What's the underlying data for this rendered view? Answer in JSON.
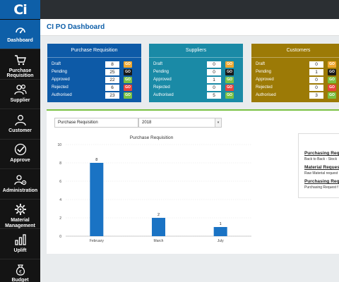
{
  "app": {
    "logo": "Ci",
    "title": "CI PO Dashboard"
  },
  "sidebar": {
    "items": [
      {
        "label": "Dashboard",
        "icon": "dashboard-icon",
        "active": true
      },
      {
        "label": "Purchase Requisition",
        "icon": "cart-icon",
        "active": false
      },
      {
        "label": "Supplier",
        "icon": "users-icon",
        "active": false
      },
      {
        "label": "Customer",
        "icon": "user-icon",
        "active": false
      },
      {
        "label": "Approve",
        "icon": "check-circle-icon",
        "active": false
      },
      {
        "label": "Administration",
        "icon": "gear-user-icon",
        "active": false
      },
      {
        "label": "Material Management",
        "icon": "gear-icon",
        "active": false
      },
      {
        "label": "Uplift",
        "icon": "bar-chart-icon",
        "active": false
      },
      {
        "label": "Budget",
        "icon": "money-bag-icon",
        "active": false
      }
    ]
  },
  "cards": [
    {
      "title": "Purchase Requisition",
      "color": "#0d5aa7",
      "rows": [
        {
          "label": "Draft",
          "value": "8",
          "go": "GO",
          "go_color": "#f0a830"
        },
        {
          "label": "Pending",
          "value": "25",
          "go": "GO",
          "go_color": "#1a1a1a"
        },
        {
          "label": "Approved",
          "value": "22",
          "go": "GO",
          "go_color": "#7ac143"
        },
        {
          "label": "Rejected",
          "value": "6",
          "go": "GO",
          "go_color": "#e8423c"
        },
        {
          "label": "Authorised",
          "value": "23",
          "go": "GO",
          "go_color": "#7ac143"
        }
      ]
    },
    {
      "title": "Suppliers",
      "color": "#1a8aa6",
      "rows": [
        {
          "label": "Draft",
          "value": "0",
          "go": "GO",
          "go_color": "#f0a830"
        },
        {
          "label": "Pending",
          "value": "0",
          "go": "GO",
          "go_color": "#1a1a1a"
        },
        {
          "label": "Approved",
          "value": "1",
          "go": "GO",
          "go_color": "#7ac143"
        },
        {
          "label": "Rejected",
          "value": "0",
          "go": "GO",
          "go_color": "#e8423c"
        },
        {
          "label": "Authorised",
          "value": "5",
          "go": "GO",
          "go_color": "#7ac143"
        }
      ]
    },
    {
      "title": "Customers",
      "color": "#9c7a06",
      "rows": [
        {
          "label": "Draft",
          "value": "0",
          "go": "GO",
          "go_color": "#f0a830"
        },
        {
          "label": "Pending",
          "value": "1",
          "go": "GO",
          "go_color": "#1a1a1a"
        },
        {
          "label": "Approved",
          "value": "0",
          "go": "GO",
          "go_color": "#7ac143"
        },
        {
          "label": "Rejected",
          "value": "0",
          "go": "GO",
          "go_color": "#e8423c"
        },
        {
          "label": "Authorised",
          "value": "3",
          "go": "GO",
          "go_color": "#7ac143"
        }
      ]
    }
  ],
  "filters": {
    "type_select": "Purchase Requisition",
    "year_select": "2018"
  },
  "chart_data": {
    "type": "bar",
    "title": "Purchase Requisition",
    "categories": [
      "February",
      "March",
      "July"
    ],
    "values": [
      8,
      2,
      1
    ],
    "ylim": [
      0,
      10
    ],
    "yticks": [
      0,
      2,
      4,
      6,
      8,
      10
    ],
    "grid": true,
    "bar_color": "#1a73c4"
  },
  "side_list": {
    "entries": [
      {
        "title": "Purchasing Requi",
        "sub": "Back to Back - Stock"
      },
      {
        "title": "Material Request",
        "sub": "Raw Material request"
      },
      {
        "title": "Purchasing Requi",
        "sub": "Purchasing Request f"
      }
    ]
  }
}
